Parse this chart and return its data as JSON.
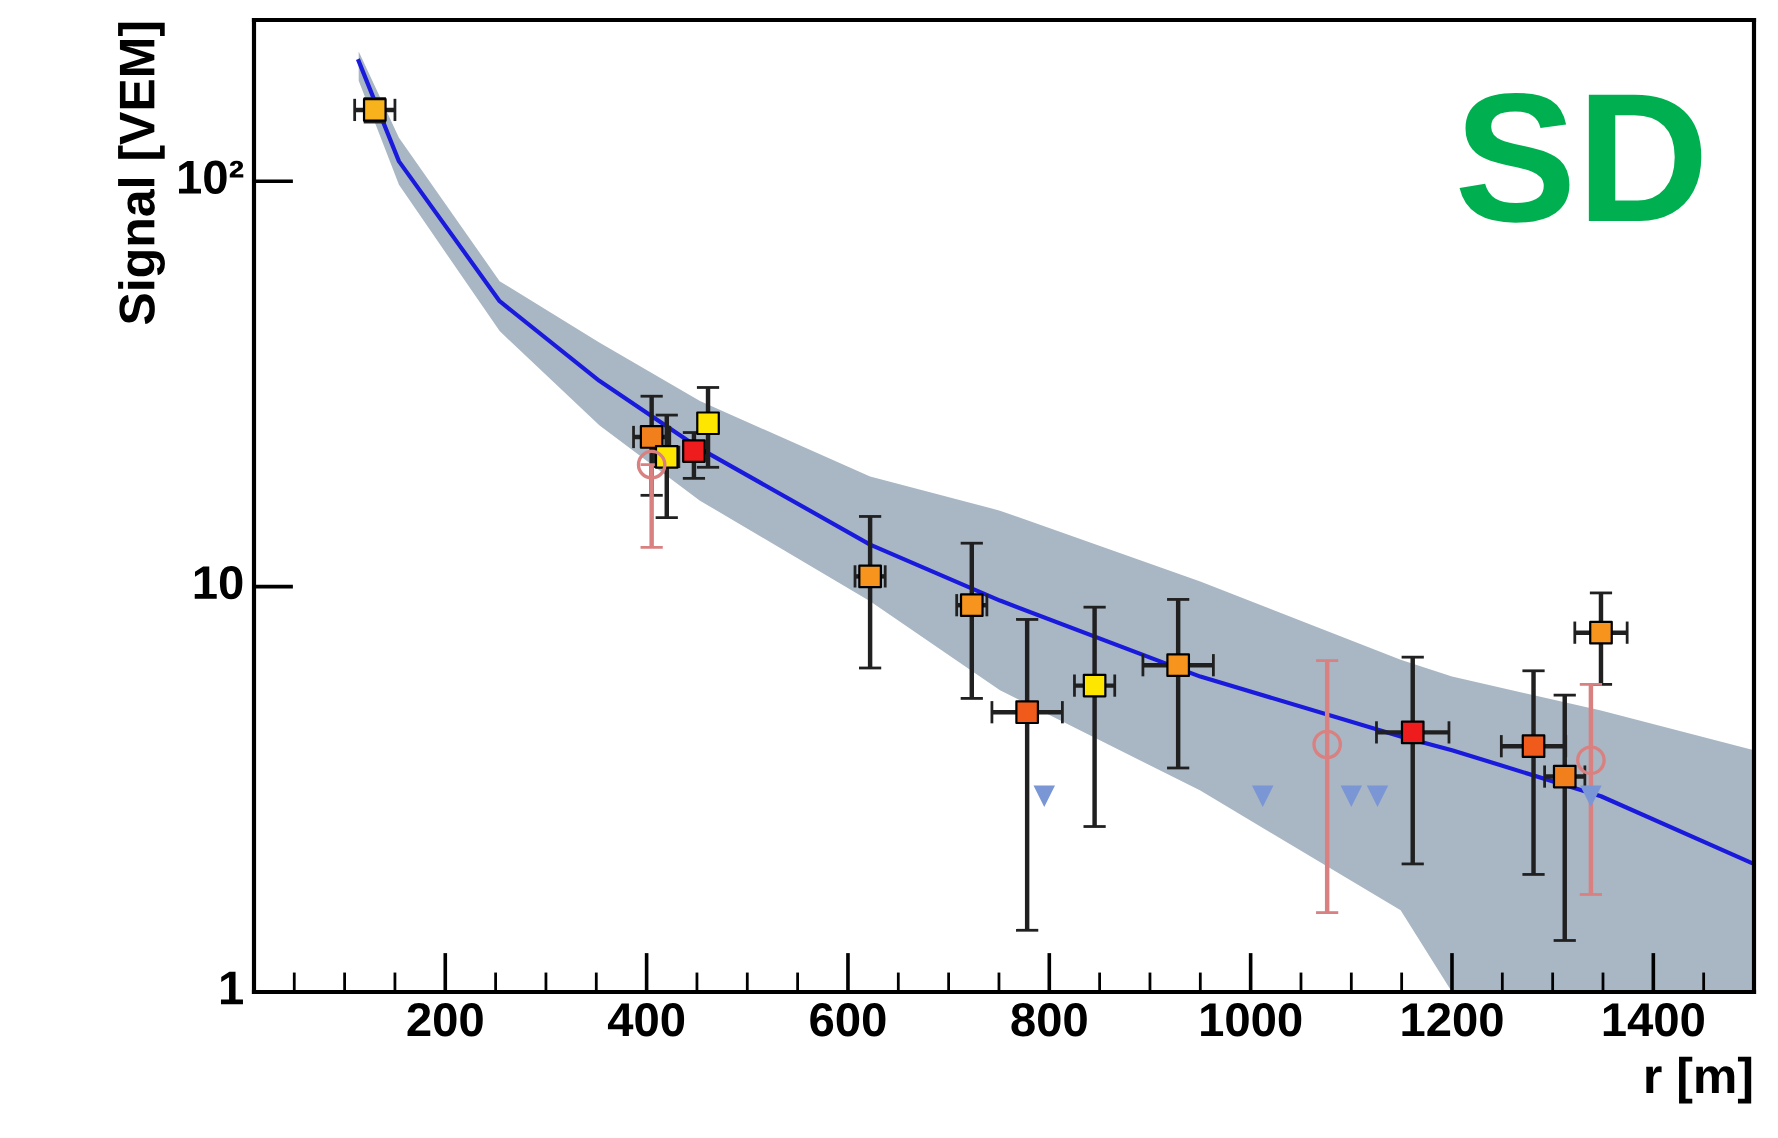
{
  "chart_data": {
    "type": "scatter",
    "xlabel": "r [m]",
    "ylabel": "Signal [VEM]",
    "log": "y",
    "grid": false,
    "legend": false,
    "xlim": [
      10,
      1500
    ],
    "xticks": [
      200,
      400,
      600,
      800,
      1000,
      1200,
      1400
    ],
    "ylim": [
      1,
      250
    ],
    "yticks": [
      1,
      10,
      {
        "value": 100,
        "label": "10²"
      }
    ],
    "annotations": [
      "SD"
    ],
    "series": [
      {
        "type": "line",
        "color": "#1a1adc",
        "line_style": "solid",
        "marker": "none",
        "x": [
          114,
          154,
          254,
          353,
          453,
          622,
          751,
          950,
          1149,
          1200,
          1348,
          1500
        ],
        "values": [
          198,
          112,
          50.6,
          32.2,
          21.9,
          12.7,
          9.24,
          6.0,
          4.27,
          3.95,
          3.04,
          2.07
        ],
        "lower": [
          177,
          98,
          42.7,
          25,
          16.3,
          9.2,
          5.55,
          3.14,
          1.59,
          1.0,
          1.0,
          1.0
        ],
        "upper": [
          209,
          128,
          56.7,
          40,
          28.7,
          18.7,
          15.4,
          10.3,
          6.6,
          6.0,
          4.95,
          3.95
        ]
      },
      {
        "marker": "square",
        "color": "#f7941d",
        "x": [
          130,
          405,
          420,
          447,
          461,
          622,
          723,
          778,
          845,
          928,
          1161,
          1281,
          1312,
          1348
        ],
        "values": [
          150,
          23.4,
          20.9,
          21.6,
          25.3,
          10.6,
          9.0,
          4.9,
          5.7,
          6.4,
          4.37,
          4.04,
          3.4,
          7.7
        ],
        "colors": [
          "#f7b21c",
          "#f07f1c",
          "#ffe600",
          "#ee1c1c",
          "#ffe600",
          "#f7941d",
          "#f7941d",
          "#f05a1a",
          "#ffe600",
          "#f7941d",
          "#ee1c1c",
          "#f05a1a",
          "#f07f1c",
          "#f7941d"
        ],
        "errors": [
          [
            140,
            160
          ],
          [
            16.8,
            29.5
          ],
          [
            14.8,
            26.5
          ],
          [
            18.5,
            24
          ],
          [
            19.7,
            31
          ],
          [
            6.3,
            14.9
          ],
          [
            5.3,
            12.8
          ],
          [
            1.42,
            8.3
          ],
          [
            2.56,
            8.9
          ],
          [
            3.57,
            9.3
          ],
          [
            2.07,
            6.7
          ],
          [
            1.95,
            6.2
          ],
          [
            1.34,
            5.4
          ],
          [
            5.74,
            9.65
          ]
        ],
        "xerrors": [
          20,
          18,
          12,
          8,
          8,
          15,
          15,
          35,
          20,
          35,
          36,
          32,
          20,
          26
        ]
      },
      {
        "marker": "circle",
        "color": "#d98080",
        "x": [
          405,
          1076,
          1338
        ],
        "values": [
          20,
          4.08,
          3.73
        ],
        "errors": [
          [
            12.5,
            20
          ],
          [
            1.57,
            6.57
          ],
          [
            1.74,
            5.74
          ]
        ]
      },
      {
        "marker": "triangle",
        "color": "#7b96d4",
        "x": [
          795,
          1012,
          1100,
          1126,
          1338
        ],
        "values": [
          3.04,
          3.04,
          3.04,
          3.04,
          3.04
        ]
      }
    ]
  }
}
